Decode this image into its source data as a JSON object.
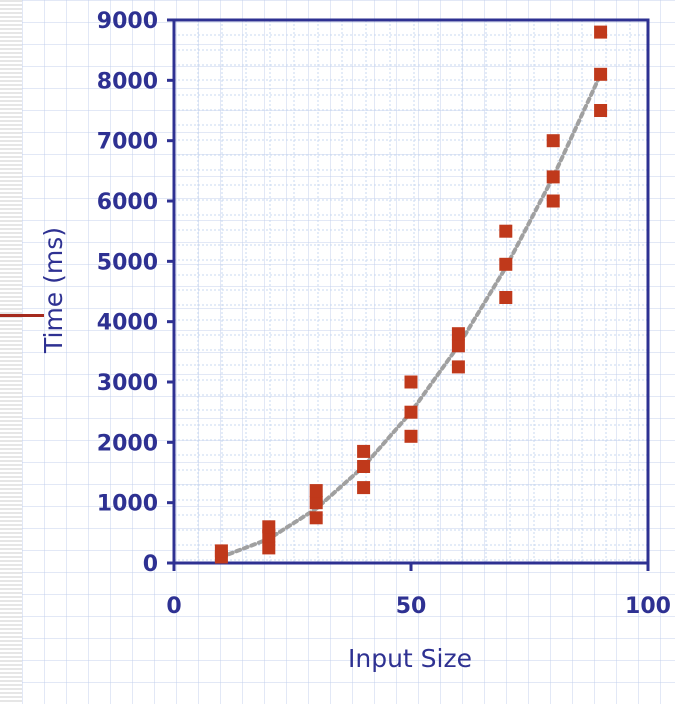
{
  "chart_data": {
    "type": "scatter",
    "xlabel": "Input Size",
    "ylabel": "Time (ms)",
    "xlim": [
      0,
      100
    ],
    "ylim": [
      0,
      9000
    ],
    "x_ticks": [
      "0",
      "50",
      "100"
    ],
    "y_ticks": [
      "0",
      "1000",
      "2000",
      "3000",
      "4000",
      "5000",
      "6000",
      "7000",
      "8000",
      "9000"
    ],
    "grid": true,
    "legend": "none",
    "series": [
      {
        "color": "#c0391b",
        "marker": "square",
        "points": [
          {
            "x": 10,
            "y": 100
          },
          {
            "x": 10,
            "y": 200
          },
          {
            "x": 20,
            "y": 250
          },
          {
            "x": 20,
            "y": 450
          },
          {
            "x": 20,
            "y": 600
          },
          {
            "x": 30,
            "y": 750
          },
          {
            "x": 30,
            "y": 1000
          },
          {
            "x": 30,
            "y": 1200
          },
          {
            "x": 40,
            "y": 1250
          },
          {
            "x": 40,
            "y": 1600
          },
          {
            "x": 40,
            "y": 1850
          },
          {
            "x": 50,
            "y": 2100
          },
          {
            "x": 50,
            "y": 2500
          },
          {
            "x": 50,
            "y": 3000
          },
          {
            "x": 60,
            "y": 3250
          },
          {
            "x": 60,
            "y": 3600
          },
          {
            "x": 60,
            "y": 3800
          },
          {
            "x": 70,
            "y": 4400
          },
          {
            "x": 70,
            "y": 4950
          },
          {
            "x": 70,
            "y": 5500
          },
          {
            "x": 80,
            "y": 6000
          },
          {
            "x": 80,
            "y": 6400
          },
          {
            "x": 80,
            "y": 7000
          },
          {
            "x": 90,
            "y": 7500
          },
          {
            "x": 90,
            "y": 8100
          },
          {
            "x": 90,
            "y": 8800
          }
        ]
      }
    ],
    "trendline": {
      "style": "dotted",
      "color": "#a0a0a0",
      "points": [
        {
          "x": 10,
          "y": 100
        },
        {
          "x": 20,
          "y": 400
        },
        {
          "x": 30,
          "y": 900
        },
        {
          "x": 40,
          "y": 1600
        },
        {
          "x": 50,
          "y": 2500
        },
        {
          "x": 60,
          "y": 3600
        },
        {
          "x": 70,
          "y": 4900
        },
        {
          "x": 80,
          "y": 6400
        },
        {
          "x": 90,
          "y": 8100
        }
      ]
    },
    "colors": {
      "axis": "#2e3192",
      "grid": "#c8d8f0",
      "marker": "#c0391b",
      "trendline": "#a0a0a0"
    }
  }
}
